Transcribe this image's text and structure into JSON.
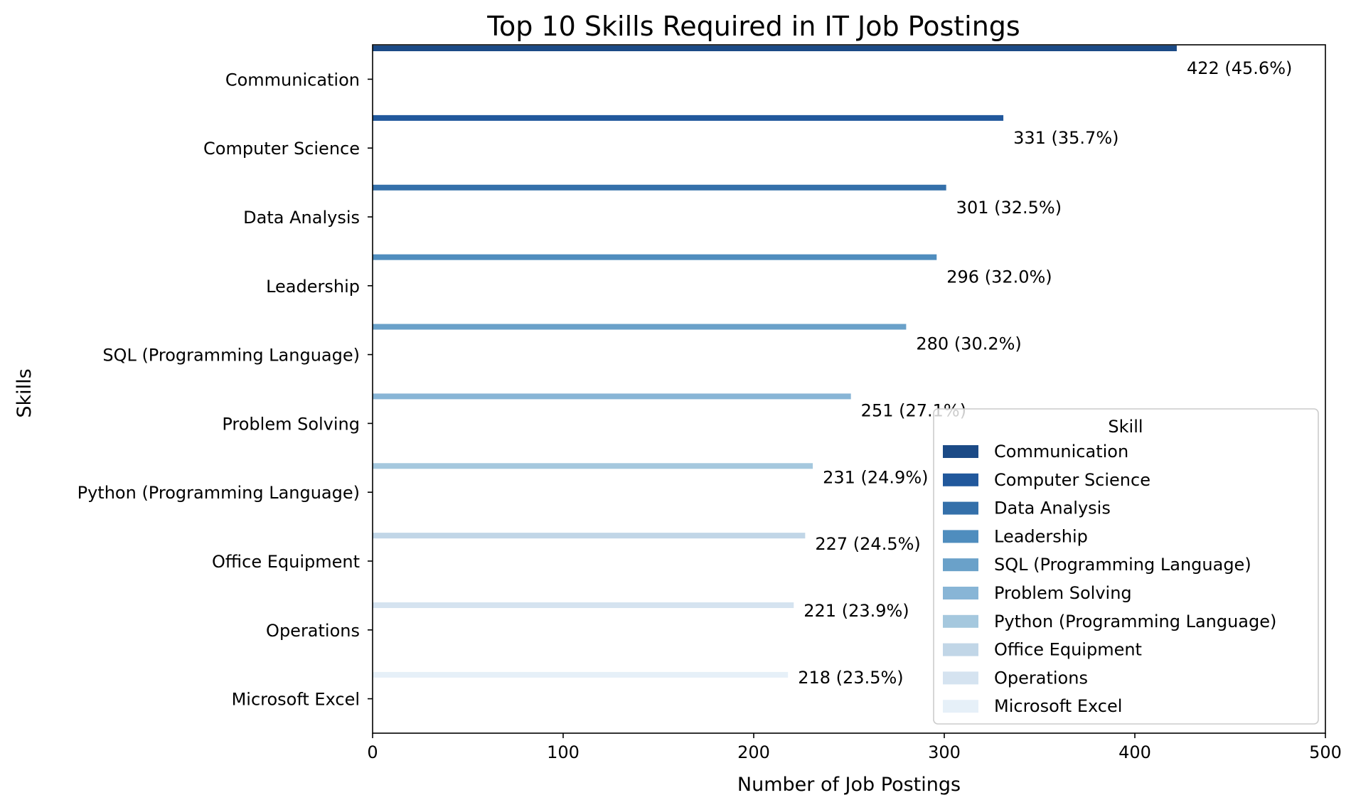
{
  "chart_data": {
    "type": "bar",
    "orientation": "horizontal",
    "title": "Top 10 Skills Required in IT Job Postings",
    "xlabel": "Number of Job Postings",
    "ylabel": "Skills",
    "xlim": [
      0,
      500
    ],
    "xticks": [
      0,
      100,
      200,
      300,
      400,
      500
    ],
    "grid": false,
    "legend": {
      "title": "Skill",
      "placement": "lower-right"
    },
    "categories": [
      "Communication",
      "Computer Science",
      "Data Analysis",
      "Leadership",
      "SQL (Programming Language)",
      "Problem Solving",
      "Python (Programming Language)",
      "Office Equipment",
      "Operations",
      "Microsoft Excel"
    ],
    "values": [
      422,
      331,
      301,
      296,
      280,
      251,
      231,
      227,
      221,
      218
    ],
    "data_labels": [
      "422 (45.6%)",
      "331 (35.7%)",
      "301 (32.5%)",
      "296 (32.0%)",
      "280 (30.2%)",
      "251 (27.1%)",
      "231 (24.9%)",
      "227 (24.5%)",
      "221 (23.9%)",
      "218 (23.5%)"
    ],
    "colors": [
      "#1b4a86",
      "#21589c",
      "#3470aa",
      "#4f8dbe",
      "#6aa1c9",
      "#88b5d6",
      "#a5c8de",
      "#c1d6e7",
      "#d5e3f0",
      "#e6f0f8"
    ]
  }
}
